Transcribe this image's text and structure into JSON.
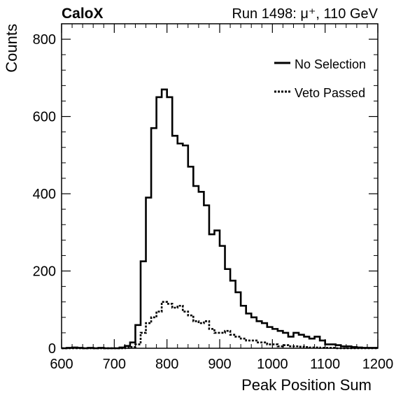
{
  "header": {
    "left_label": "CaloX",
    "right_label": "Run 1498:   μ⁺, 110 GeV"
  },
  "chart_data": {
    "type": "histogram",
    "xlabel": "Peak Position Sum",
    "ylabel": "Counts",
    "xlim": [
      600,
      1200
    ],
    "ylim": [
      0,
      840
    ],
    "x_ticks": [
      600,
      700,
      800,
      900,
      1000,
      1100,
      1200
    ],
    "y_ticks": [
      0,
      200,
      400,
      600,
      800
    ],
    "grid": false,
    "legend_position": "top-right",
    "bin_width": 10,
    "bin_edges_start": 600,
    "series": [
      {
        "name": "No Selection",
        "line_style": "solid",
        "color": "#000000",
        "values": [
          0,
          1,
          2,
          1,
          0,
          1,
          0,
          1,
          0,
          0,
          0,
          2,
          6,
          15,
          60,
          225,
          390,
          570,
          650,
          670,
          650,
          550,
          530,
          525,
          470,
          420,
          405,
          370,
          295,
          305,
          265,
          205,
          175,
          145,
          110,
          90,
          80,
          70,
          65,
          55,
          50,
          45,
          40,
          30,
          40,
          35,
          30,
          25,
          30,
          20,
          10,
          10,
          8,
          5,
          5,
          3,
          2,
          1,
          1,
          1
        ]
      },
      {
        "name": "Veto Passed",
        "line_style": "dashed",
        "color": "#000000",
        "values": [
          0,
          0,
          0,
          0,
          0,
          0,
          0,
          0,
          0,
          0,
          0,
          0,
          1,
          3,
          10,
          40,
          65,
          80,
          95,
          120,
          115,
          105,
          110,
          95,
          85,
          70,
          65,
          70,
          50,
          40,
          40,
          45,
          35,
          30,
          25,
          20,
          20,
          15,
          15,
          10,
          10,
          5,
          8,
          5,
          5,
          4,
          3,
          2,
          2,
          1,
          1,
          1,
          0,
          0,
          0,
          0,
          0,
          0,
          0,
          0
        ]
      }
    ]
  }
}
